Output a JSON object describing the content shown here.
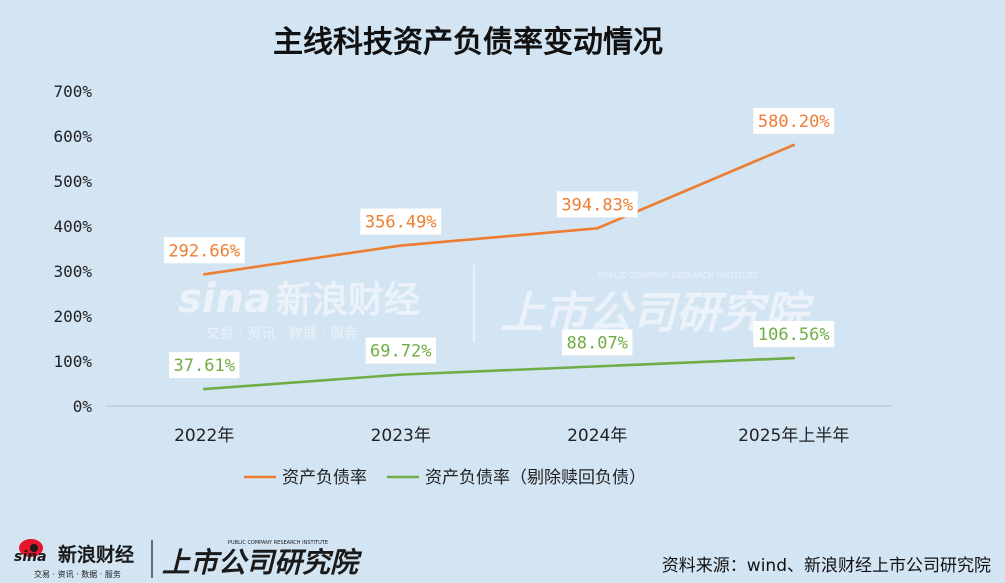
{
  "chart_data": {
    "type": "line",
    "title": "主线科技资产负债率变动情况",
    "categories": [
      "2022年",
      "2023年",
      "2024年",
      "2025年上半年"
    ],
    "series": [
      {
        "name": "资产负债率",
        "color": "#ed7d31",
        "values": [
          292.66,
          356.49,
          394.83,
          580.2
        ],
        "labels": [
          "292.66%",
          "356.49%",
          "394.83%",
          "580.20%"
        ]
      },
      {
        "name": "资产负债率（剔除赎回负债）",
        "color": "#70ad47",
        "values": [
          37.61,
          69.72,
          88.07,
          106.56
        ],
        "labels": [
          "37.61%",
          "69.72%",
          "88.07%",
          "106.56%"
        ]
      }
    ],
    "ylim": [
      0,
      700
    ],
    "yticks": [
      "0%",
      "100%",
      "200%",
      "300%",
      "400%",
      "500%",
      "600%",
      "700%"
    ],
    "grid": false,
    "legend_position": "bottom"
  },
  "watermark": {
    "sina_brand": "sina",
    "sina_name": "新浪财经",
    "sina_tagline": "交易 · 资讯 · 数据 · 服务",
    "institute_name": "上市公司研究院",
    "institute_en": "PUBLIC COMPANY RESEARCH INSTITUTE"
  },
  "footer": {
    "sina_brand": "sina",
    "sina_name": "新浪财经",
    "sina_tagline": "交易 · 资讯 · 数据 · 服务",
    "institute_name": "上市公司研究院",
    "institute_en": "PUBLIC COMPANY RESEARCH INSTITUTE",
    "source_text": "资料来源：wind、新浪财经上市公司研究院"
  }
}
